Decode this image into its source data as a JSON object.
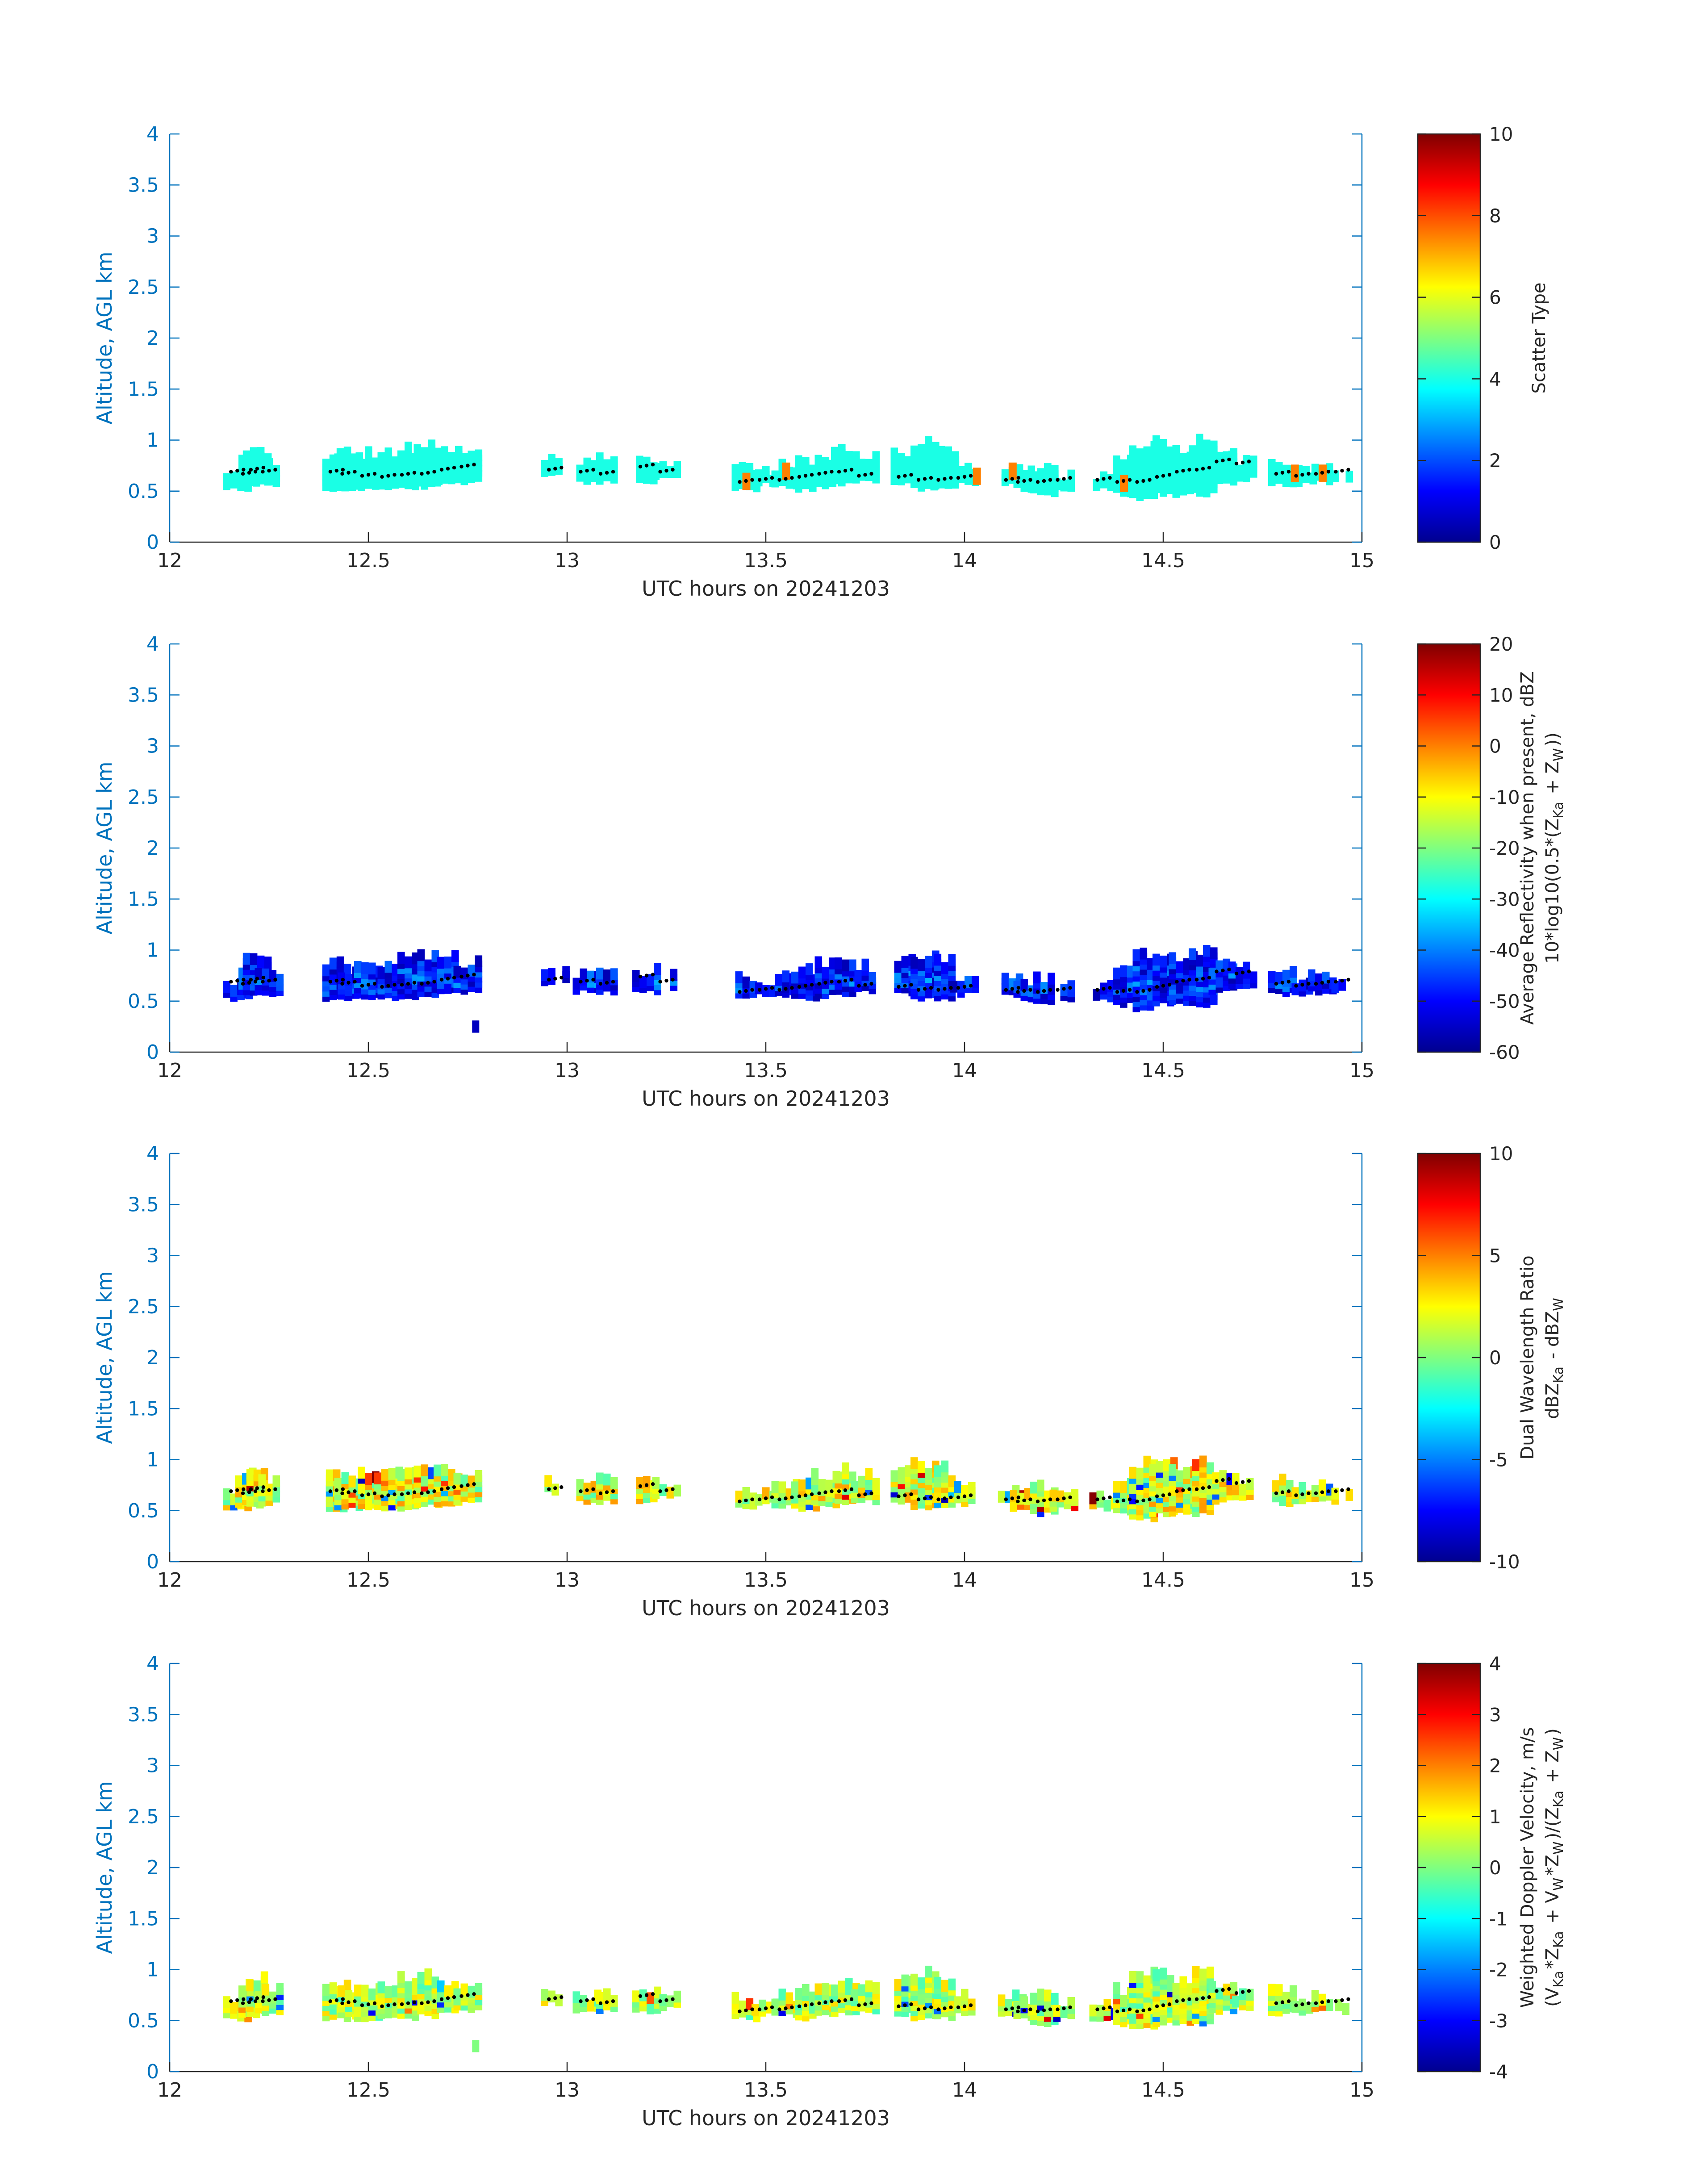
{
  "figure": {
    "x_tick_labels": [
      "12",
      "12.5",
      "13",
      "13.5",
      "14",
      "14.5",
      "15"
    ],
    "y_tick_labels": [
      "0",
      "0.5",
      "1",
      "1.5",
      "2",
      "2.5",
      "3",
      "3.5",
      "4"
    ]
  },
  "chart_data": [
    {
      "type": "heatmap",
      "xlabel": "UTC hours on 20241203",
      "ylabel": "Altitude, AGL km",
      "xlim": [
        12,
        15
      ],
      "ylim": [
        0,
        4
      ],
      "colorbar": {
        "label_lines": [
          "Scatter Type"
        ],
        "ticks": [
          "0",
          "2",
          "4",
          "6",
          "8",
          "10"
        ],
        "range": [
          0,
          10
        ],
        "colormap": "jet"
      },
      "time_bins_hours": [
        12.17,
        12.2,
        12.22,
        12.25,
        12.42,
        12.45,
        12.5,
        12.55,
        12.6,
        12.65,
        12.7,
        12.75,
        12.97,
        13.05,
        13.1,
        13.2,
        13.25,
        13.45,
        13.5,
        13.55,
        13.6,
        13.65,
        13.7,
        13.75,
        13.85,
        13.9,
        13.95,
        14.0,
        14.12,
        14.15,
        14.2,
        14.25,
        14.35,
        14.4,
        14.45,
        14.5,
        14.55,
        14.6,
        14.65,
        14.7,
        14.8,
        14.85,
        14.9,
        14.95
      ],
      "echo_base_km": [
        0.55,
        0.58,
        0.6,
        0.6,
        0.55,
        0.55,
        0.55,
        0.55,
        0.55,
        0.58,
        0.6,
        0.62,
        0.7,
        0.62,
        0.62,
        0.62,
        0.66,
        0.55,
        0.6,
        0.58,
        0.55,
        0.58,
        0.6,
        0.62,
        0.6,
        0.55,
        0.55,
        0.6,
        0.6,
        0.55,
        0.5,
        0.55,
        0.55,
        0.5,
        0.45,
        0.5,
        0.5,
        0.5,
        0.62,
        0.65,
        0.6,
        0.6,
        0.62,
        0.62
      ],
      "echo_top_km": [
        0.75,
        0.9,
        0.95,
        0.85,
        0.9,
        0.85,
        0.9,
        0.9,
        0.95,
        1.0,
        0.95,
        0.9,
        0.82,
        0.8,
        0.85,
        0.85,
        0.8,
        0.75,
        0.72,
        0.8,
        0.85,
        0.9,
        0.95,
        0.88,
        0.95,
        1.0,
        0.95,
        0.8,
        0.8,
        0.75,
        0.78,
        0.7,
        0.7,
        0.85,
        1.0,
        1.02,
        0.95,
        1.05,
        0.9,
        0.85,
        0.85,
        0.75,
        0.8,
        0.72
      ],
      "cloud_base_dots_km": [
        0.7,
        0.68,
        0.72,
        0.7,
        0.7,
        0.68,
        0.66,
        0.65,
        0.67,
        0.68,
        0.72,
        0.75,
        0.72,
        0.7,
        0.68,
        0.75,
        0.7,
        0.6,
        0.62,
        0.62,
        0.65,
        0.68,
        0.7,
        0.66,
        0.65,
        0.62,
        0.62,
        0.64,
        0.62,
        0.6,
        0.6,
        0.62,
        0.62,
        0.6,
        0.6,
        0.65,
        0.7,
        0.72,
        0.8,
        0.78,
        0.68,
        0.66,
        0.68,
        0.7
      ],
      "dominant_value": 4,
      "outlier_bins": [
        {
          "x": 13.45,
          "y": 0.6,
          "value": 7.5
        },
        {
          "x": 13.55,
          "y": 0.7,
          "value": 7.5
        },
        {
          "x": 14.03,
          "y": 0.65,
          "value": 7.5
        },
        {
          "x": 14.12,
          "y": 0.7,
          "value": 7.5
        },
        {
          "x": 14.4,
          "y": 0.58,
          "value": 7.5
        },
        {
          "x": 14.83,
          "y": 0.68,
          "value": 7.5
        },
        {
          "x": 14.9,
          "y": 0.68,
          "value": 7.5
        }
      ]
    },
    {
      "type": "heatmap",
      "xlabel": "UTC hours on 20241203",
      "ylabel": "Altitude, AGL km",
      "xlim": [
        12,
        15
      ],
      "ylim": [
        0,
        4
      ],
      "colorbar": {
        "label_lines": [
          "Average Reflectivity when present, dBZ",
          "10*log10(0.5*(Z_Ka + Z_W))"
        ],
        "ticks": [
          "-60",
          "-50",
          "-40",
          "-30",
          "-20",
          "-10",
          "0",
          "10",
          "20"
        ],
        "range": [
          -60,
          20
        ],
        "colormap": "jet"
      },
      "typical_range_dbz": [
        -55,
        -38
      ],
      "extra_echo": {
        "x": 12.77,
        "y": 0.25,
        "value": -55
      }
    },
    {
      "type": "heatmap",
      "xlabel": "UTC hours on 20241203",
      "ylabel": "Altitude, AGL km",
      "xlim": [
        12,
        15
      ],
      "ylim": [
        0,
        4
      ],
      "colorbar": {
        "label_lines": [
          "Dual Wavelength Ratio",
          "dBZ_Ka - dBZ_W"
        ],
        "ticks": [
          "-10",
          "-5",
          "0",
          "5",
          "10"
        ],
        "range": [
          -10,
          10
        ],
        "colormap": "jet"
      },
      "typical_range_db": [
        -1,
        4
      ]
    },
    {
      "type": "heatmap",
      "xlabel": "UTC hours on 20241203",
      "ylabel": "Altitude, AGL km",
      "xlim": [
        12,
        15
      ],
      "ylim": [
        0,
        4
      ],
      "colorbar": {
        "label_lines": [
          "Weighted Doppler Velocity, m/s",
          "(V_Ka*Z_Ka + V_W*Z_W)/(Z_Ka + Z_W)"
        ],
        "ticks": [
          "-4",
          "-3",
          "-2",
          "-1",
          "0",
          "1",
          "2",
          "3",
          "4"
        ],
        "range": [
          -4,
          4
        ],
        "colormap": "jet"
      },
      "typical_range_ms": [
        -0.5,
        1.2
      ],
      "extra_echo": {
        "x": 12.77,
        "y": 0.25,
        "value": 0
      }
    }
  ]
}
